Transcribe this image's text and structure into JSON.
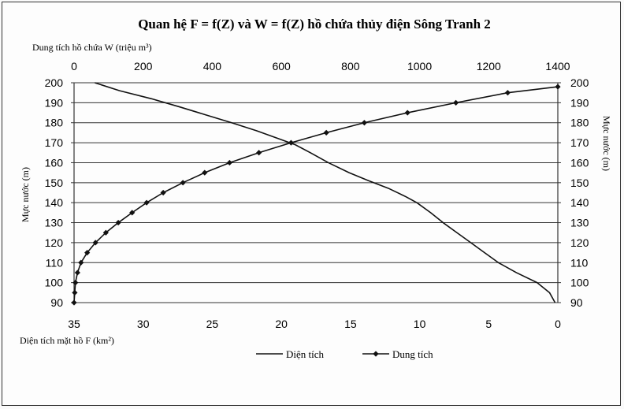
{
  "chart_data": {
    "type": "line",
    "title": "Quan hệ F = f(Z) và W = f(Z) hồ chứa thủy điện Sông Tranh 2",
    "left_ylabel": "Mực nước (m)",
    "right_ylabel": "Mực nước (m)",
    "top_xlabel": "Dung tích hồ chứa W (triệu m³)",
    "bottom_xlabel": "Diện tích mặt hồ F (km²)",
    "ylim": [
      90,
      200
    ],
    "yticks": [
      "200",
      "190",
      "180",
      "170",
      "160",
      "150",
      "140",
      "130",
      "120",
      "110",
      "100",
      "90"
    ],
    "top_xlim": [
      0,
      1400
    ],
    "top_xticks": [
      "0",
      "200",
      "400",
      "600",
      "800",
      "1000",
      "1200",
      "1400"
    ],
    "bottom_xlim": [
      35,
      0
    ],
    "bottom_xticks": [
      "35",
      "30",
      "25",
      "20",
      "15",
      "10",
      "5",
      "0"
    ],
    "grid": true,
    "legend_position": "bottom-center",
    "series": [
      {
        "name": "Diện tích",
        "axis": "bottom",
        "marker": "none",
        "points": [
          [
            0.2,
            90
          ],
          [
            0.6,
            95
          ],
          [
            1.5,
            100
          ],
          [
            3.0,
            105
          ],
          [
            4.3,
            110
          ],
          [
            5.3,
            115
          ],
          [
            6.3,
            120
          ],
          [
            7.3,
            125
          ],
          [
            8.3,
            130
          ],
          [
            9.2,
            135
          ],
          [
            10.2,
            140
          ],
          [
            11.0,
            143
          ],
          [
            12.2,
            147
          ],
          [
            13.7,
            151
          ],
          [
            15.1,
            155
          ],
          [
            16.6,
            160
          ],
          [
            17.9,
            165
          ],
          [
            19.0,
            169
          ],
          [
            20.2,
            172
          ],
          [
            21.8,
            176
          ],
          [
            23.6,
            180
          ],
          [
            25.5,
            184
          ],
          [
            27.4,
            188
          ],
          [
            29.4,
            192
          ],
          [
            31.7,
            196
          ],
          [
            33.5,
            200
          ]
        ]
      },
      {
        "name": "Dung tích",
        "axis": "top",
        "marker": "diamond",
        "points": [
          [
            0,
            90
          ],
          [
            2,
            95
          ],
          [
            4,
            100
          ],
          [
            10,
            105
          ],
          [
            20,
            110
          ],
          [
            38,
            115
          ],
          [
            62,
            120
          ],
          [
            92,
            125
          ],
          [
            128,
            130
          ],
          [
            168,
            135
          ],
          [
            210,
            140
          ],
          [
            258,
            145
          ],
          [
            315,
            150
          ],
          [
            378,
            155
          ],
          [
            450,
            160
          ],
          [
            535,
            165
          ],
          [
            628,
            170
          ],
          [
            730,
            175
          ],
          [
            840,
            180
          ],
          [
            965,
            185
          ],
          [
            1105,
            190
          ],
          [
            1255,
            195
          ],
          [
            1400,
            198
          ]
        ]
      }
    ]
  },
  "colors": {
    "line": "#111111",
    "grid": "#333333",
    "background": "#fdfdfd"
  }
}
